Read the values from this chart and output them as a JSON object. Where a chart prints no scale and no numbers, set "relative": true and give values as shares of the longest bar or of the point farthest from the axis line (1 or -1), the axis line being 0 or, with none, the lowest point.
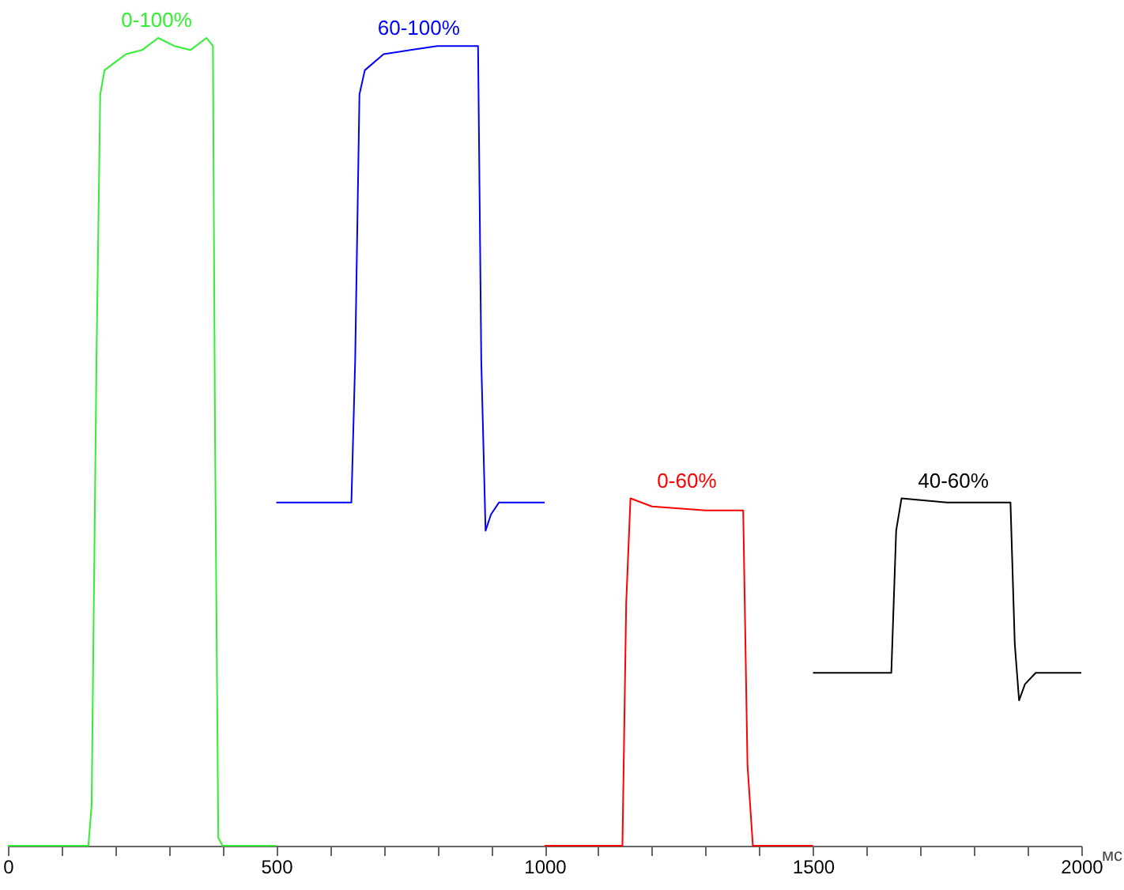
{
  "chart_data": {
    "type": "line",
    "relative": true,
    "xlabel": "мс",
    "xlim": [
      0,
      2000
    ],
    "xticks": [
      0,
      {
        "value": 100,
        "label": null
      },
      {
        "value": 200,
        "label": null
      },
      {
        "value": 300,
        "label": null
      },
      {
        "value": 400,
        "label": null
      },
      500,
      {
        "value": 600,
        "label": null
      },
      {
        "value": 700,
        "label": null
      },
      {
        "value": 800,
        "label": null
      },
      {
        "value": 900,
        "label": null
      },
      1000,
      {
        "value": 1100,
        "label": null
      },
      {
        "value": 1200,
        "label": null
      },
      {
        "value": 1300,
        "label": null
      },
      {
        "value": 1400,
        "label": null
      },
      1500,
      {
        "value": 1600,
        "label": null
      },
      {
        "value": 1700,
        "label": null
      },
      {
        "value": 1800,
        "label": null
      },
      {
        "value": 1900,
        "label": null
      },
      2000
    ],
    "series": [
      {
        "name": "0-100%",
        "color": "#33ee33",
        "x": [
          0,
          150,
          156,
          165,
          172,
          180,
          200,
          220,
          250,
          280,
          310,
          340,
          370,
          382,
          386,
          392,
          400,
          500
        ],
        "values": [
          0,
          0,
          0.05,
          0.6,
          0.93,
          0.96,
          0.97,
          0.98,
          0.985,
          1,
          0.99,
          0.985,
          1,
          0.99,
          0.5,
          0.01,
          0,
          0
        ]
      },
      {
        "name": "60-100%",
        "color": "#0000ff",
        "x": [
          500,
          640,
          647,
          655,
          665,
          700,
          750,
          800,
          850,
          876,
          882,
          890,
          900,
          915,
          1000
        ],
        "values": [
          0.425,
          0.425,
          0.6,
          0.93,
          0.96,
          0.98,
          0.985,
          0.99,
          0.99,
          0.99,
          0.6,
          0.39,
          0.41,
          0.425,
          0.425
        ]
      },
      {
        "name": "0-60%",
        "color": "#ff0000",
        "x": [
          1000,
          1145,
          1152,
          1160,
          1200,
          1300,
          1370,
          1378,
          1388,
          1500
        ],
        "values": [
          0,
          0,
          0.3,
          0.43,
          0.42,
          0.415,
          0.415,
          0.1,
          0,
          0
        ]
      },
      {
        "name": "40-60%",
        "color": "#000000",
        "x": [
          1500,
          1646,
          1655,
          1665,
          1750,
          1868,
          1876,
          1884,
          1895,
          1915,
          2000
        ],
        "values": [
          0.214,
          0.214,
          0.39,
          0.43,
          0.425,
          0.425,
          0.25,
          0.18,
          0.2,
          0.214,
          0.214
        ]
      }
    ]
  }
}
